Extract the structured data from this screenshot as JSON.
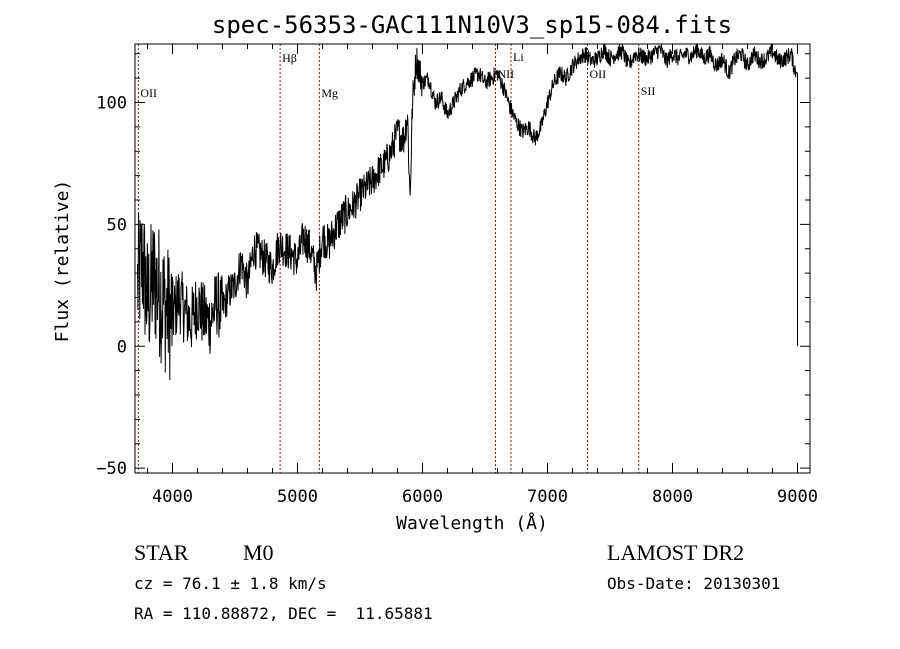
{
  "chart_data": {
    "type": "line",
    "title": "spec-56353-GAC111N10V3_sp15-084.fits",
    "xlabel": "Wavelength (Å)",
    "ylabel": "Flux (relative)",
    "xlim": [
      3700,
      9100
    ],
    "ylim": [
      -52,
      124
    ],
    "xticks": [
      4000,
      5000,
      6000,
      7000,
      8000,
      9000
    ],
    "yticks": [
      -50,
      0,
      50,
      100
    ],
    "grid": false,
    "line_color": "#000000",
    "marker_color": "#8b1a1a",
    "lines": [
      {
        "label": "OII",
        "x": 3727
      },
      {
        "label": "Hβ",
        "x": 4861
      },
      {
        "label": "Mg",
        "x": 5175
      },
      {
        "label": "NII",
        "x": 6584
      },
      {
        "label": "Li",
        "x": 6708
      },
      {
        "label": "OII",
        "x": 7320
      },
      {
        "label": "SII",
        "x": 7730
      }
    ],
    "series": [
      {
        "x": [
          3720,
          3760,
          3800,
          3850,
          3900,
          3950,
          4000,
          4050,
          4100,
          4150,
          4200,
          4250,
          4300,
          4350,
          4400,
          4450,
          4500,
          4550,
          4600,
          4650,
          4700,
          4750,
          4800,
          4850,
          4900,
          4950,
          5000,
          5050,
          5100,
          5150,
          5200,
          5250,
          5300,
          5350,
          5400,
          5450,
          5500,
          5550,
          5600,
          5650,
          5700,
          5750,
          5800,
          5850,
          5880,
          5900,
          5920,
          5950,
          6000,
          6050,
          6100,
          6150,
          6200,
          6250,
          6300,
          6350,
          6400,
          6450,
          6500,
          6550,
          6600,
          6650,
          6700,
          6750,
          6800,
          6850,
          6900,
          6950,
          7000,
          7050,
          7100,
          7150,
          7200,
          7250,
          7300,
          7350,
          7400,
          7450,
          7500,
          7550,
          7600,
          7650,
          7700,
          7750,
          7800,
          7850,
          7900,
          7950,
          8000,
          8050,
          8100,
          8150,
          8200,
          8250,
          8300,
          8350,
          8400,
          8450,
          8500,
          8550,
          8600,
          8650,
          8700,
          8750,
          8800,
          8850,
          8900,
          8950,
          8970,
          8990,
          9000
        ],
        "y": [
          25,
          35,
          18,
          28,
          22,
          15,
          12,
          20,
          14,
          10,
          18,
          12,
          10,
          18,
          15,
          22,
          25,
          35,
          25,
          40,
          38,
          35,
          32,
          42,
          40,
          38,
          35,
          45,
          40,
          30,
          45,
          42,
          48,
          52,
          55,
          58,
          62,
          65,
          68,
          72,
          75,
          80,
          88,
          85,
          95,
          60,
          100,
          118,
          108,
          110,
          100,
          102,
          95,
          100,
          105,
          108,
          110,
          112,
          108,
          110,
          112,
          106,
          98,
          92,
          88,
          90,
          85,
          90,
          100,
          108,
          112,
          110,
          115,
          118,
          120,
          117,
          118,
          122,
          118,
          120,
          121,
          115,
          120,
          119,
          118,
          120,
          122,
          117,
          120,
          118,
          120,
          119,
          122,
          118,
          120,
          115,
          118,
          112,
          118,
          120,
          115,
          120,
          117,
          118,
          121,
          117,
          118,
          120,
          115,
          112,
          0
        ]
      }
    ]
  },
  "info": {
    "object_class": "STAR",
    "subclass": "M0",
    "survey": "LAMOST DR2",
    "cz": "cz = 76.1 ± 1.8 km/s",
    "obs_date": "Obs-Date: 20130301",
    "coords": "RA = 110.88872, DEC =  11.65881"
  }
}
